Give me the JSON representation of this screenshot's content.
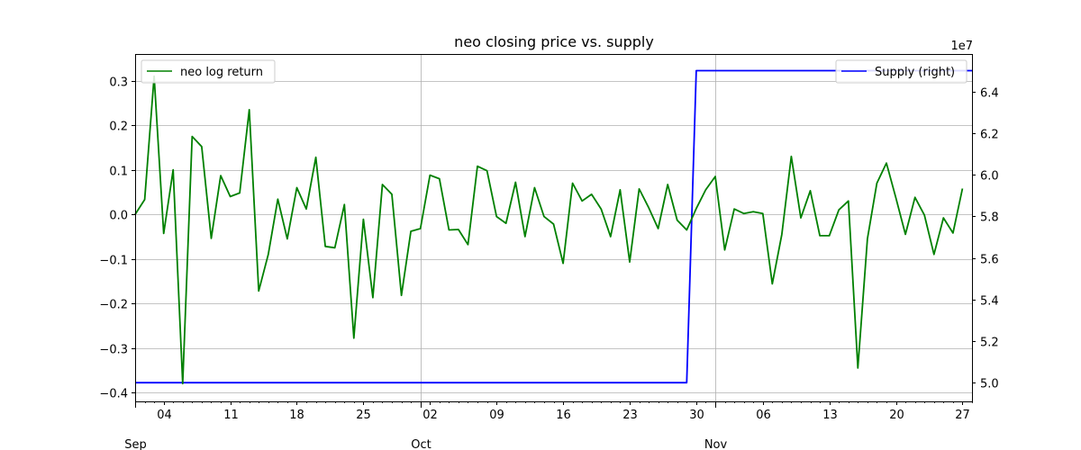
{
  "chart_data": {
    "type": "line",
    "title": "neo closing price vs. supply",
    "x_axis": {
      "start": "2018-09-01",
      "end": "2018-11-28",
      "tick_labels": [
        {
          "date": "2018-09-04",
          "label": "04"
        },
        {
          "date": "2018-09-11",
          "label": "11"
        },
        {
          "date": "2018-09-18",
          "label": "18"
        },
        {
          "date": "2018-09-25",
          "label": "25"
        },
        {
          "date": "2018-10-02",
          "label": "02"
        },
        {
          "date": "2018-10-09",
          "label": "09"
        },
        {
          "date": "2018-10-16",
          "label": "16"
        },
        {
          "date": "2018-10-23",
          "label": "23"
        },
        {
          "date": "2018-10-30",
          "label": "30"
        },
        {
          "date": "2018-11-06",
          "label": "06"
        },
        {
          "date": "2018-11-13",
          "label": "13"
        },
        {
          "date": "2018-11-20",
          "label": "20"
        },
        {
          "date": "2018-11-27",
          "label": "27"
        }
      ],
      "month_labels": [
        {
          "date": "2018-09-01",
          "label": "Sep"
        },
        {
          "date": "2018-10-01",
          "label": "Oct"
        },
        {
          "date": "2018-11-01",
          "label": "Nov"
        }
      ],
      "grid_dates": [
        "2018-10-01",
        "2018-11-01"
      ]
    },
    "y_left": {
      "ylim": [
        -0.42,
        0.36
      ],
      "ticks": [
        {
          "value": -0.4,
          "label": "−0.4"
        },
        {
          "value": -0.3,
          "label": "−0.3"
        },
        {
          "value": -0.2,
          "label": "−0.2"
        },
        {
          "value": -0.1,
          "label": "−0.1"
        },
        {
          "value": 0.0,
          "label": "0.0"
        },
        {
          "value": 0.1,
          "label": "0.1"
        },
        {
          "value": 0.2,
          "label": "0.2"
        },
        {
          "value": 0.3,
          "label": "0.3"
        }
      ]
    },
    "y_right": {
      "ylim": [
        49100000,
        65800000
      ],
      "offset_label": "1e7",
      "ticks": [
        {
          "value": 50000000,
          "label": "5.0"
        },
        {
          "value": 52000000,
          "label": "5.2"
        },
        {
          "value": 54000000,
          "label": "5.4"
        },
        {
          "value": 56000000,
          "label": "5.6"
        },
        {
          "value": 58000000,
          "label": "5.8"
        },
        {
          "value": 60000000,
          "label": "6.0"
        },
        {
          "value": 62000000,
          "label": "6.2"
        },
        {
          "value": 64000000,
          "label": "6.4"
        }
      ]
    },
    "grid": true,
    "series": [
      {
        "name": "neo log return",
        "axis": "left",
        "color": "#008000",
        "legend_position": "top-left",
        "x": [
          "2018-09-01",
          "2018-09-02",
          "2018-09-03",
          "2018-09-04",
          "2018-09-05",
          "2018-09-06",
          "2018-09-07",
          "2018-09-08",
          "2018-09-09",
          "2018-09-10",
          "2018-09-11",
          "2018-09-12",
          "2018-09-13",
          "2018-09-14",
          "2018-09-15",
          "2018-09-16",
          "2018-09-17",
          "2018-09-18",
          "2018-09-19",
          "2018-09-20",
          "2018-09-21",
          "2018-09-22",
          "2018-09-23",
          "2018-09-24",
          "2018-09-25",
          "2018-09-26",
          "2018-09-27",
          "2018-09-28",
          "2018-09-29",
          "2018-09-30",
          "2018-10-01",
          "2018-10-02",
          "2018-10-03",
          "2018-10-04",
          "2018-10-05",
          "2018-10-06",
          "2018-10-07",
          "2018-10-08",
          "2018-10-09",
          "2018-10-10",
          "2018-10-11",
          "2018-10-12",
          "2018-10-13",
          "2018-10-14",
          "2018-10-15",
          "2018-10-16",
          "2018-10-17",
          "2018-10-18",
          "2018-10-19",
          "2018-10-20",
          "2018-10-21",
          "2018-10-22",
          "2018-10-23",
          "2018-10-24",
          "2018-10-25",
          "2018-10-26",
          "2018-10-27",
          "2018-10-28",
          "2018-10-29",
          "2018-10-30",
          "2018-10-31",
          "2018-11-01",
          "2018-11-02",
          "2018-11-03",
          "2018-11-04",
          "2018-11-05",
          "2018-11-06",
          "2018-11-07",
          "2018-11-08",
          "2018-11-09",
          "2018-11-10",
          "2018-11-11",
          "2018-11-12",
          "2018-11-13",
          "2018-11-14",
          "2018-11-15",
          "2018-11-16",
          "2018-11-17",
          "2018-11-18",
          "2018-11-19",
          "2018-11-20",
          "2018-11-21",
          "2018-11-22",
          "2018-11-23",
          "2018-11-24",
          "2018-11-25",
          "2018-11-26",
          "2018-11-27"
        ],
        "values": [
          0.0,
          0.033,
          0.31,
          -0.043,
          0.1,
          -0.38,
          0.175,
          0.152,
          -0.054,
          0.087,
          0.04,
          0.048,
          0.235,
          -0.172,
          -0.09,
          0.034,
          -0.055,
          0.06,
          0.012,
          0.128,
          -0.072,
          -0.075,
          0.022,
          -0.278,
          -0.011,
          -0.187,
          0.067,
          0.045,
          -0.182,
          -0.038,
          -0.032,
          0.088,
          0.08,
          -0.035,
          -0.034,
          -0.068,
          0.108,
          0.098,
          -0.005,
          -0.02,
          0.072,
          -0.05,
          0.06,
          -0.005,
          -0.022,
          -0.11,
          0.07,
          0.03,
          0.045,
          0.012,
          -0.05,
          0.055,
          -0.107,
          0.057,
          0.015,
          -0.032,
          0.067,
          -0.013,
          -0.035,
          0.013,
          0.055,
          0.085,
          -0.08,
          0.012,
          0.002,
          0.006,
          0.002,
          -0.156,
          -0.045,
          0.13,
          -0.008,
          0.053,
          -0.048,
          -0.048,
          0.01,
          0.03,
          -0.345,
          -0.055,
          0.07,
          0.115,
          0.037,
          -0.045,
          0.038,
          -0.002,
          -0.09,
          -0.008,
          -0.042,
          0.058
        ]
      },
      {
        "name": "Supply (right)",
        "axis": "right",
        "color": "#0000ff",
        "legend_position": "top-right",
        "x": [
          "2018-09-01",
          "2018-10-29",
          "2018-10-30",
          "2018-11-28"
        ],
        "values": [
          50000000,
          50000000,
          65000000,
          65000000
        ]
      }
    ]
  }
}
